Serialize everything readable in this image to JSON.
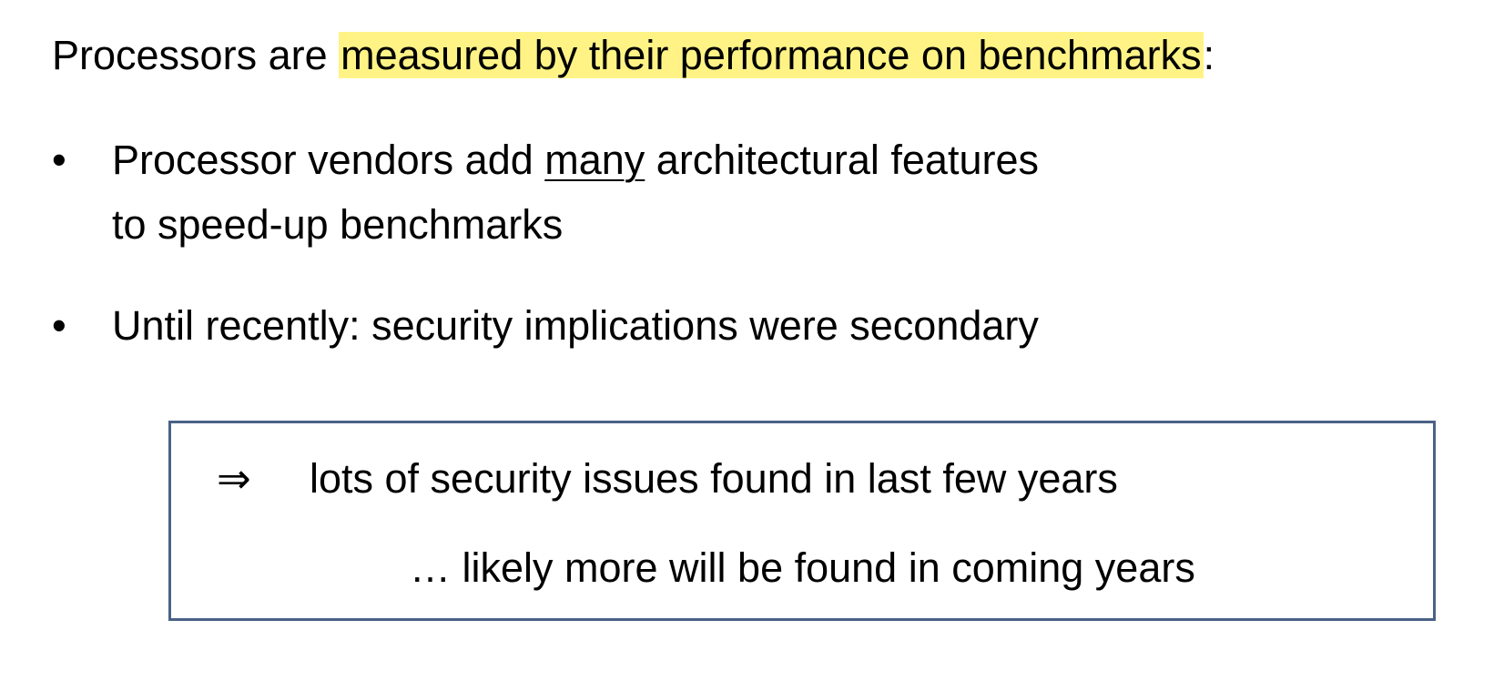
{
  "heading": {
    "prefix": "Processors are ",
    "highlight": "measured by their performance on benchmarks",
    "suffix": ":"
  },
  "bullets": [
    {
      "marker": "•",
      "line1_before": "Processor vendors add ",
      "line1_underlined": "many",
      "line1_after": " architectural features",
      "line2": "to speed-up benchmarks"
    },
    {
      "marker": "•",
      "text": "Until recently:  security implications were secondary"
    }
  ],
  "callout": {
    "arrow": "⇒",
    "line1": "lots of security issues found in last few years",
    "line2": "… likely more will be found in coming years"
  },
  "colors": {
    "highlight": "#fff385",
    "callout_border": "#4a6287"
  }
}
